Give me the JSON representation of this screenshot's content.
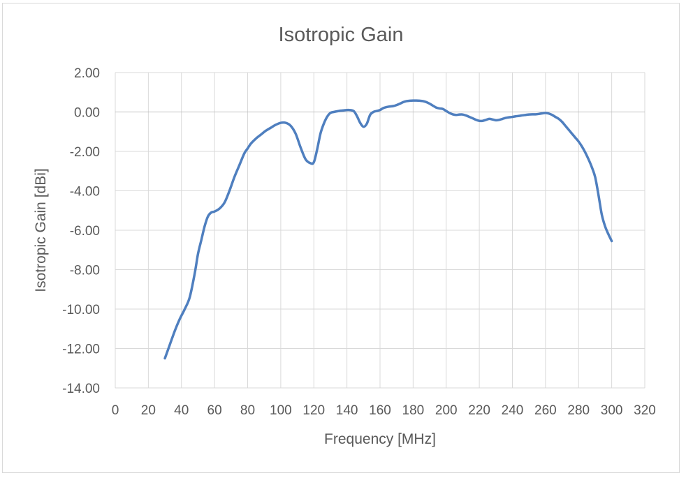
{
  "chart_data": {
    "type": "line",
    "title": "Isotropic Gain",
    "xlabel": "Frequency [MHz]",
    "ylabel": "Isotropic Gain [dBi]",
    "xlim": [
      0,
      320
    ],
    "ylim": [
      -14,
      2
    ],
    "x_ticks": [
      "0",
      "20",
      "40",
      "60",
      "80",
      "100",
      "120",
      "140",
      "160",
      "180",
      "200",
      "220",
      "240",
      "260",
      "280",
      "300",
      "320"
    ],
    "y_ticks": [
      "2.00",
      "0.00",
      "-2.00",
      "-4.00",
      "-6.00",
      "-8.00",
      "-10.00",
      "-12.00",
      "-14.00"
    ],
    "grid": true,
    "legend": "none",
    "colors": {
      "series": "#4f7fbf",
      "grid": "#d9d9d9",
      "zero_line": "#bfbfbf",
      "text": "#595959"
    },
    "series": [
      {
        "x": [
          30,
          33,
          36,
          39,
          42,
          45,
          48,
          50,
          52,
          54,
          56,
          58,
          60,
          63,
          66,
          69,
          72,
          75,
          78,
          80,
          82,
          85,
          88,
          91,
          94,
          97,
          100,
          103,
          106,
          109,
          112,
          115,
          118,
          120,
          122,
          124,
          126,
          128,
          130,
          132,
          135,
          138,
          141,
          144,
          146,
          148,
          150,
          152,
          154,
          156,
          158,
          160,
          162,
          164,
          166,
          168,
          170,
          172,
          174,
          176,
          178,
          180,
          182,
          184,
          186,
          188,
          190,
          192,
          194,
          196,
          198,
          200,
          202,
          204,
          206,
          208,
          210,
          212,
          214,
          216,
          218,
          220,
          222,
          224,
          226,
          228,
          230,
          232,
          234,
          236,
          238,
          240,
          242,
          244,
          246,
          248,
          250,
          252,
          254,
          256,
          258,
          260,
          262,
          264,
          266,
          268,
          270,
          272,
          274,
          276,
          278,
          280,
          282,
          284,
          286,
          288,
          290,
          292,
          294,
          296,
          298,
          300
        ],
        "y": [
          -12.5,
          -11.8,
          -11.1,
          -10.5,
          -10.0,
          -9.4,
          -8.2,
          -7.2,
          -6.5,
          -5.8,
          -5.3,
          -5.1,
          -5.05,
          -4.9,
          -4.6,
          -4.0,
          -3.3,
          -2.7,
          -2.1,
          -1.85,
          -1.6,
          -1.35,
          -1.15,
          -0.95,
          -0.8,
          -0.65,
          -0.55,
          -0.55,
          -0.7,
          -1.1,
          -1.8,
          -2.4,
          -2.6,
          -2.55,
          -1.9,
          -1.1,
          -0.6,
          -0.25,
          -0.05,
          0.0,
          0.05,
          0.08,
          0.1,
          0.05,
          -0.2,
          -0.55,
          -0.75,
          -0.6,
          -0.15,
          0.0,
          0.05,
          0.1,
          0.2,
          0.25,
          0.28,
          0.3,
          0.35,
          0.42,
          0.5,
          0.55,
          0.57,
          0.58,
          0.58,
          0.57,
          0.55,
          0.5,
          0.42,
          0.32,
          0.22,
          0.18,
          0.15,
          0.05,
          -0.05,
          -0.12,
          -0.15,
          -0.13,
          -0.13,
          -0.18,
          -0.25,
          -0.32,
          -0.4,
          -0.45,
          -0.45,
          -0.4,
          -0.35,
          -0.38,
          -0.42,
          -0.4,
          -0.35,
          -0.3,
          -0.27,
          -0.25,
          -0.22,
          -0.2,
          -0.17,
          -0.15,
          -0.13,
          -0.12,
          -0.12,
          -0.1,
          -0.07,
          -0.05,
          -0.08,
          -0.15,
          -0.25,
          -0.35,
          -0.5,
          -0.7,
          -0.9,
          -1.1,
          -1.3,
          -1.5,
          -1.75,
          -2.05,
          -2.4,
          -2.8,
          -3.3,
          -4.2,
          -5.2,
          -5.8,
          -6.2,
          -6.55
        ]
      }
    ]
  }
}
